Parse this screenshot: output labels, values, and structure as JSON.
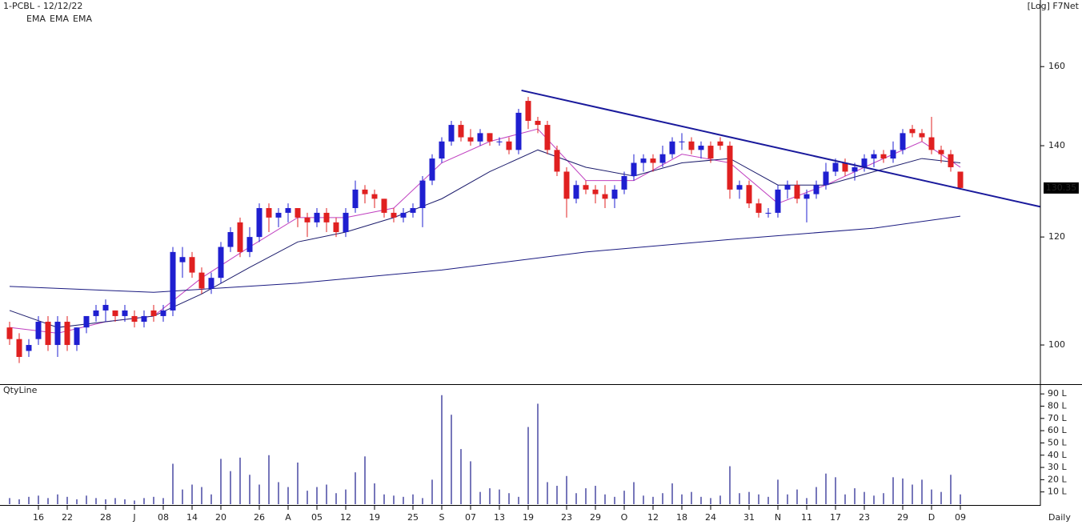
{
  "chart_data": {
    "type": "candlestick",
    "title": "1-PCBL - 12/12/22",
    "scale_note": "[Log] F7Net",
    "log_scale": true,
    "period": "Daily",
    "up_color": "#1f1fd0",
    "down_color": "#e02020",
    "categories": [
      null,
      null,
      null,
      "16",
      null,
      null,
      "22",
      null,
      null,
      null,
      "28",
      null,
      null,
      "J",
      null,
      null,
      "08",
      null,
      null,
      "14",
      null,
      null,
      "20",
      null,
      null,
      null,
      "26",
      null,
      null,
      "A",
      null,
      null,
      "05",
      null,
      null,
      "12",
      null,
      null,
      "19",
      null,
      null,
      null,
      "25",
      null,
      null,
      "S",
      null,
      null,
      "07",
      null,
      null,
      "13",
      null,
      null,
      "19",
      null,
      null,
      null,
      "23",
      null,
      null,
      "29",
      null,
      null,
      "O",
      null,
      null,
      "12",
      null,
      null,
      "18",
      null,
      null,
      "24",
      null,
      null,
      null,
      "31",
      null,
      null,
      "N",
      null,
      null,
      "11",
      null,
      null,
      "17",
      null,
      null,
      "23",
      null,
      null,
      null,
      "29",
      null,
      null,
      "D",
      null,
      null,
      "09"
    ],
    "candles": [
      [
        103,
        104,
        100,
        101
      ],
      [
        101,
        102,
        97,
        98
      ],
      [
        99,
        101,
        98,
        100
      ],
      [
        101,
        105,
        100,
        104
      ],
      [
        104,
        105,
        99,
        100
      ],
      [
        100,
        105,
        98,
        104
      ],
      [
        104,
        105,
        99,
        100
      ],
      [
        100,
        103,
        99,
        103
      ],
      [
        103,
        105,
        102,
        105
      ],
      [
        105,
        107,
        104,
        106
      ],
      [
        106,
        108,
        104,
        107
      ],
      [
        106,
        106,
        104,
        105
      ],
      [
        105,
        107,
        104,
        106
      ],
      [
        105,
        106,
        103,
        104
      ],
      [
        104,
        106,
        103,
        105
      ],
      [
        106,
        107,
        104,
        105
      ],
      [
        105,
        107,
        104,
        106
      ],
      [
        106,
        118,
        105,
        117
      ],
      [
        115,
        118,
        112,
        116
      ],
      [
        116,
        117,
        112,
        113
      ],
      [
        113,
        114,
        109,
        110
      ],
      [
        110,
        113,
        109,
        112
      ],
      [
        112,
        119,
        111,
        118
      ],
      [
        118,
        122,
        117,
        121
      ],
      [
        123,
        124,
        116,
        117
      ],
      [
        117,
        122,
        116,
        120
      ],
      [
        120,
        127,
        119,
        126
      ],
      [
        126,
        127,
        121,
        124
      ],
      [
        124,
        126,
        122,
        125
      ],
      [
        125,
        127,
        123,
        126
      ],
      [
        126,
        126,
        122,
        124
      ],
      [
        124,
        125,
        120,
        123
      ],
      [
        123,
        126,
        122,
        125
      ],
      [
        125,
        126,
        121,
        123
      ],
      [
        123,
        124,
        120,
        121
      ],
      [
        121,
        126,
        120,
        125
      ],
      [
        126,
        132,
        125,
        130
      ],
      [
        130,
        131,
        127,
        129
      ],
      [
        129,
        130,
        126,
        128
      ],
      [
        128,
        128,
        124,
        125
      ],
      [
        125,
        126,
        123,
        124
      ],
      [
        124,
        126,
        123,
        125
      ],
      [
        125,
        127,
        124,
        126
      ],
      [
        126,
        133,
        122,
        132
      ],
      [
        132,
        138,
        131,
        137
      ],
      [
        137,
        142,
        136,
        141
      ],
      [
        141,
        146,
        140,
        145
      ],
      [
        145,
        146,
        141,
        142
      ],
      [
        142,
        144,
        140,
        141
      ],
      [
        141,
        144,
        140,
        143
      ],
      [
        143,
        143,
        140,
        141
      ],
      [
        141,
        142,
        140,
        141
      ],
      [
        141,
        142,
        138,
        139
      ],
      [
        139,
        149,
        138,
        148
      ],
      [
        151,
        152,
        144,
        146
      ],
      [
        146,
        147,
        143,
        145
      ],
      [
        145,
        146,
        138,
        139
      ],
      [
        139,
        140,
        133,
        134
      ],
      [
        134,
        135,
        124,
        128
      ],
      [
        128,
        132,
        127,
        131
      ],
      [
        131,
        132,
        129,
        130
      ],
      [
        130,
        131,
        127,
        129
      ],
      [
        129,
        131,
        126,
        128
      ],
      [
        128,
        131,
        126,
        130
      ],
      [
        130,
        134,
        129,
        133
      ],
      [
        133,
        138,
        132,
        136
      ],
      [
        136,
        138,
        134,
        137
      ],
      [
        137,
        138,
        134,
        136
      ],
      [
        136,
        140,
        135,
        138
      ],
      [
        138,
        142,
        137,
        141
      ],
      [
        141,
        143,
        139,
        141
      ],
      [
        141,
        142,
        138,
        139
      ],
      [
        139,
        141,
        137,
        140
      ],
      [
        140,
        141,
        136,
        137
      ],
      [
        141,
        142,
        139,
        140
      ],
      [
        140,
        141,
        128,
        130
      ],
      [
        130,
        132,
        128,
        131
      ],
      [
        131,
        132,
        126,
        127
      ],
      [
        127,
        128,
        124,
        125
      ],
      [
        125,
        126,
        124,
        125
      ],
      [
        125,
        131,
        124,
        130
      ],
      [
        130,
        132,
        128,
        131
      ],
      [
        131,
        132,
        127,
        128
      ],
      [
        128,
        130,
        123,
        129
      ],
      [
        129,
        132,
        128,
        131
      ],
      [
        131,
        136,
        130,
        134
      ],
      [
        134,
        137,
        133,
        136
      ],
      [
        136,
        137,
        133,
        134
      ],
      [
        134,
        136,
        132,
        135
      ],
      [
        135,
        138,
        134,
        137
      ],
      [
        137,
        139,
        135,
        138
      ],
      [
        138,
        139,
        136,
        137
      ],
      [
        137,
        141,
        136,
        139
      ],
      [
        139,
        144,
        138,
        143
      ],
      [
        144,
        145,
        142,
        143
      ],
      [
        143,
        144,
        141,
        142
      ],
      [
        142,
        147,
        138,
        139
      ],
      [
        139,
        140,
        136,
        138
      ],
      [
        138,
        139,
        134,
        135
      ],
      [
        134,
        134,
        130,
        130.35
      ]
    ],
    "last_price": 130.35,
    "ema_series": [
      {
        "name": "EMA",
        "color": "#c040c0",
        "x": [
          0,
          5,
          10,
          15,
          20,
          25,
          30,
          35,
          40,
          45,
          50,
          55,
          60,
          65,
          70,
          75,
          80,
          85,
          90,
          95,
          99
        ],
        "values": [
          103,
          102,
          104,
          105,
          112,
          118,
          124,
          124,
          126,
          136,
          141,
          144,
          132,
          132,
          138,
          136,
          127,
          131,
          136,
          141,
          135
        ]
      },
      {
        "name": "EMA",
        "color": "#1c1c6c",
        "x": [
          0,
          5,
          10,
          15,
          20,
          25,
          30,
          35,
          40,
          45,
          50,
          55,
          60,
          65,
          70,
          75,
          80,
          85,
          90,
          95,
          99
        ],
        "values": [
          106,
          103,
          104,
          105,
          109,
          114,
          119,
          121,
          124,
          128,
          134,
          139,
          135,
          133,
          136,
          137,
          131,
          131,
          134,
          137,
          136
        ]
      },
      {
        "name": "EMA",
        "color": "#1a1a80",
        "x": [
          0,
          15,
          30,
          45,
          60,
          75,
          90,
          99
        ],
        "values": [
          110.4,
          109.3,
          111,
          113.5,
          117,
          119.5,
          121.8,
          124.3
        ]
      }
    ],
    "trendline": {
      "color": "#1a1a9c",
      "x": [
        53.3,
        107.3
      ],
      "values": [
        153.7,
        126.3
      ]
    },
    "ylim": [
      93.6,
      173.8
    ],
    "yticks": [
      100,
      120,
      140,
      160
    ],
    "volume": {
      "title": "QtyLine",
      "color": "#1c1c8c",
      "ylim": [
        0,
        96
      ],
      "yticks": [
        {
          "value": 10,
          "label": "10 L"
        },
        {
          "value": 20,
          "label": "20 L"
        },
        {
          "value": 30,
          "label": "30 L"
        },
        {
          "value": 40,
          "label": "40 L"
        },
        {
          "value": 50,
          "label": "50 L"
        },
        {
          "value": 60,
          "label": "60 L"
        },
        {
          "value": 70,
          "label": "70 L"
        },
        {
          "value": 80,
          "label": "80 L"
        },
        {
          "value": 90,
          "label": "90 L"
        }
      ],
      "values": [
        5,
        4,
        6,
        7,
        5,
        8,
        6,
        4,
        7,
        5,
        4,
        5,
        4,
        3,
        5,
        6,
        5,
        33,
        12,
        16,
        14,
        8,
        37,
        27,
        38,
        24,
        16,
        40,
        18,
        14,
        34,
        11,
        14,
        16,
        9,
        12,
        26,
        39,
        17,
        8,
        7,
        6,
        8,
        5,
        20,
        89,
        73,
        45,
        35,
        10,
        13,
        12,
        9,
        6,
        63,
        82,
        18,
        15,
        23,
        9,
        13,
        15,
        8,
        6,
        11,
        18,
        7,
        6,
        9,
        17,
        8,
        10,
        6,
        5,
        7,
        31,
        9,
        10,
        8,
        6,
        20,
        8,
        12,
        5,
        14,
        25,
        22,
        8,
        13,
        10,
        7,
        9,
        22,
        21,
        16,
        20,
        12,
        10,
        24,
        8
      ]
    }
  }
}
